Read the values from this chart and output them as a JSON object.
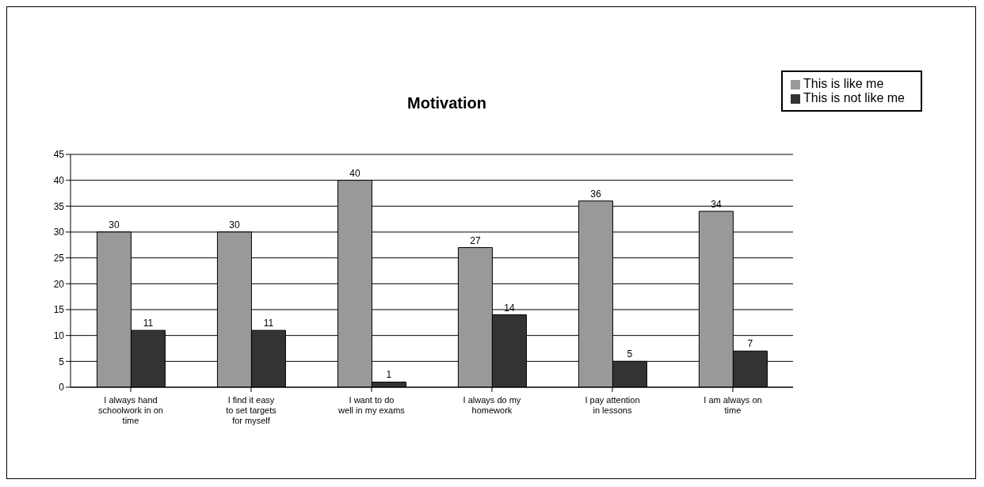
{
  "chart_data": {
    "type": "bar",
    "title": "Motivation",
    "categories": [
      "I always hand schoolwork in on time",
      "I find it easy to set targets for myself",
      "I want to do well in my exams",
      "I always do my homework",
      "I pay attention in lessons",
      "I am always on time"
    ],
    "series": [
      {
        "name": "This is like me",
        "color": "#999999",
        "values": [
          30,
          30,
          40,
          27,
          36,
          34
        ]
      },
      {
        "name": "This is not like me",
        "color": "#333333",
        "values": [
          11,
          11,
          1,
          14,
          5,
          7
        ]
      }
    ],
    "ylim": [
      0,
      45
    ],
    "yticks": [
      0,
      5,
      10,
      15,
      20,
      25,
      30,
      35,
      40,
      45
    ],
    "grid": "y",
    "legend": "top right",
    "data_labels": true
  }
}
